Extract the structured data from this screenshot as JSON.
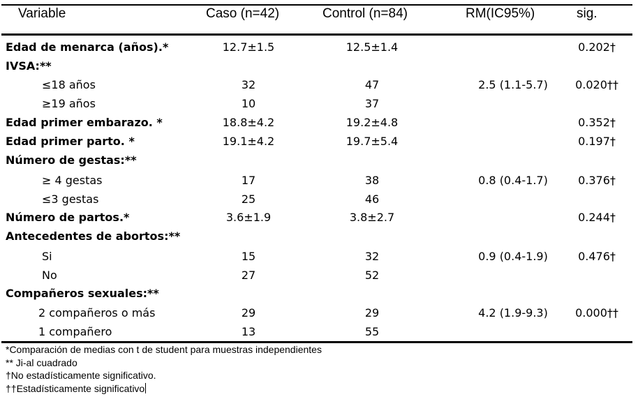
{
  "header": {
    "variable": "Variable",
    "caso": "Caso (n=42)",
    "control": "Control (n=84)",
    "rm": "RM(IC95%)",
    "sig": "sig."
  },
  "rows": [
    {
      "label": "Edad de menarca (años).*",
      "caso": "12.7±1.5",
      "control": "12.5±1.4",
      "rm": "",
      "sig": "0.202†"
    },
    {
      "label": "IVSA:**",
      "caso": "",
      "control": "",
      "rm": "",
      "sig": ""
    },
    {
      "label": "≤18 años",
      "caso": "32",
      "control": "47",
      "rm": "2.5 (1.1-5.7)",
      "sig": "0.020††"
    },
    {
      "label": "≥19 años",
      "caso": "10",
      "control": "37",
      "rm": "",
      "sig": ""
    },
    {
      "label": "Edad primer embarazo. *",
      "caso": "18.8±4.2",
      "control": "19.2±4.8",
      "rm": "",
      "sig": "0.352†"
    },
    {
      "label": "Edad primer parto. *",
      "caso": "19.1±4.2",
      "control": "19.7±5.4",
      "rm": "",
      "sig": "0.197†"
    },
    {
      "label": "Número de gestas:**",
      "caso": "",
      "control": "",
      "rm": "",
      "sig": ""
    },
    {
      "label": "≥ 4 gestas",
      "caso": "17",
      "control": "38",
      "rm": "0.8 (0.4-1.7)",
      "sig": "0.376†"
    },
    {
      "label": "≤3 gestas",
      "caso": "25",
      "control": "46",
      "rm": "",
      "sig": ""
    },
    {
      "label": "Número de partos.*",
      "caso": "3.6±1.9",
      "control": "3.8±2.7",
      "rm": "",
      "sig": "0.244†"
    },
    {
      "label": "Antecedentes de abortos:**",
      "caso": "",
      "control": "",
      "rm": "",
      "sig": ""
    },
    {
      "label": "Si",
      "caso": "15",
      "control": "32",
      "rm": "0.9 (0.4-1.9)",
      "sig": "0.476†"
    },
    {
      "label": "No",
      "caso": "27",
      "control": "52",
      "rm": "",
      "sig": ""
    },
    {
      "label": "Compañeros sexuales:**",
      "caso": "",
      "control": "",
      "rm": "",
      "sig": ""
    },
    {
      "label": "2 compañeros o más",
      "caso": "29",
      "control": "29",
      "rm": "4.2 (1.9-9.3)",
      "sig": "0.000††"
    },
    {
      "label": "1 compañero",
      "caso": "13",
      "control": "55",
      "rm": "",
      "sig": ""
    }
  ],
  "footnotes": [
    "*Comparación de medias con t de student para muestras independientes",
    "** Ji-al cuadrado",
    "†No estadísticamente significativo.",
    "††Estadísticamente significativo"
  ]
}
